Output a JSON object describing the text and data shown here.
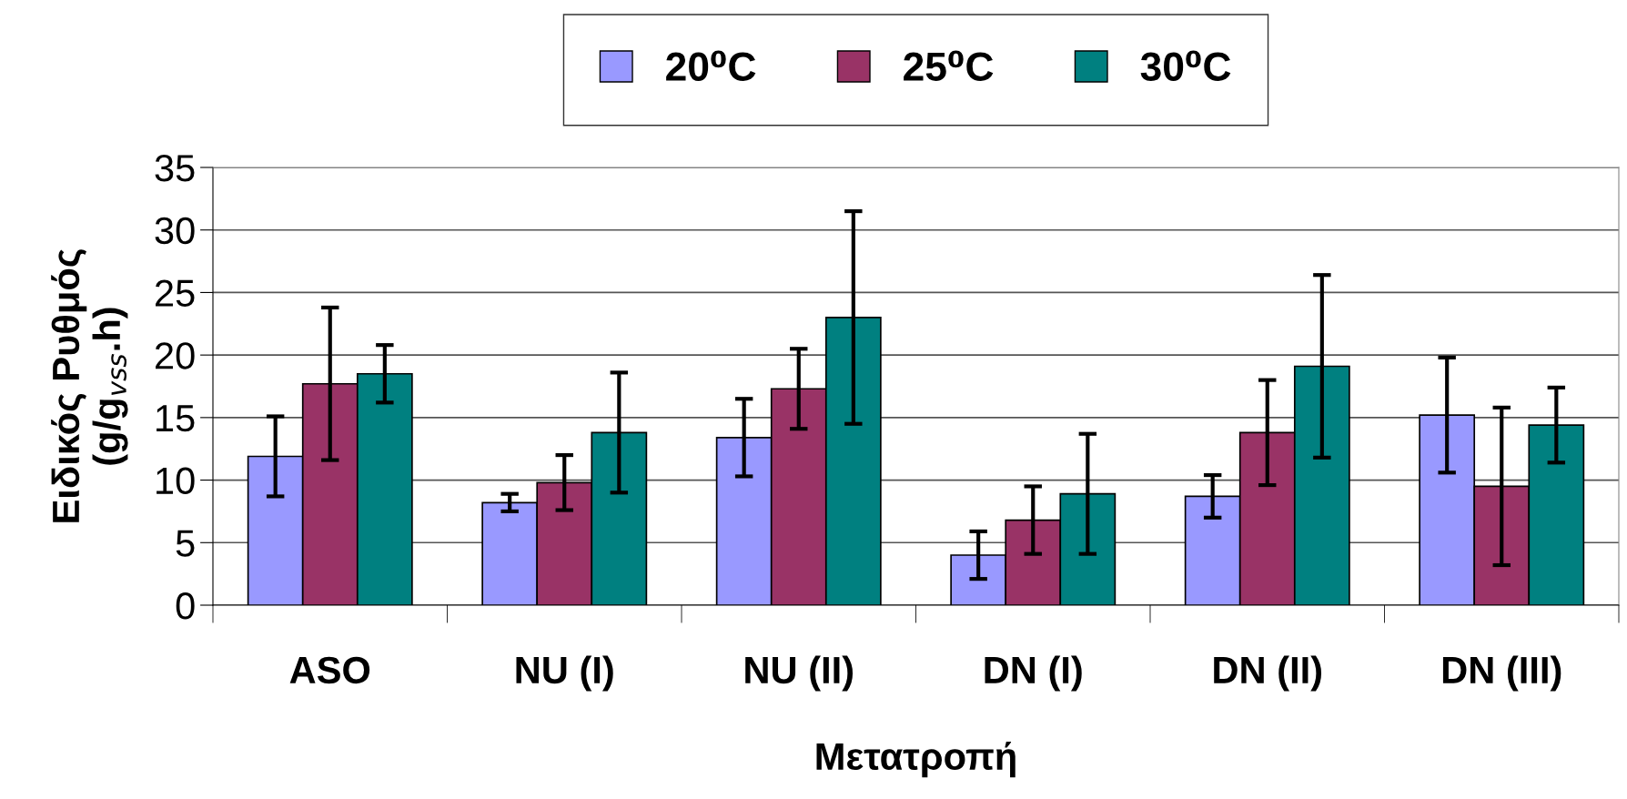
{
  "chart_data": {
    "type": "bar",
    "xlabel": "Μετατροπή",
    "ylabel": "Ειδικός Ρυθμός\n(g/g$_{vss}$.h)",
    "categories": [
      "ASO",
      "NU (I)",
      "NU (II)",
      "DN (I)",
      "DN (II)",
      "DN (III)"
    ],
    "series": [
      {
        "name": "20⁰C",
        "color": "#9999ff",
        "values": [
          11.9,
          8.2,
          13.4,
          4.0,
          8.7,
          15.2
        ],
        "errors": [
          3.2,
          0.7,
          3.1,
          1.9,
          1.7,
          4.6
        ]
      },
      {
        "name": "25⁰C",
        "color": "#993366",
        "values": [
          17.7,
          9.8,
          17.3,
          6.8,
          13.8,
          9.5
        ],
        "errors": [
          6.1,
          2.2,
          3.2,
          2.7,
          4.2,
          6.3
        ]
      },
      {
        "name": "30⁰C",
        "color": "#008080",
        "values": [
          18.5,
          13.8,
          23.0,
          8.9,
          19.1,
          14.4
        ],
        "errors": [
          2.3,
          4.8,
          8.5,
          4.8,
          7.3,
          3.0
        ]
      }
    ],
    "ylim": [
      0,
      35
    ],
    "yticks": [
      0,
      5,
      10,
      15,
      20,
      25,
      30,
      35
    ],
    "grid": "y",
    "legend": "top"
  }
}
